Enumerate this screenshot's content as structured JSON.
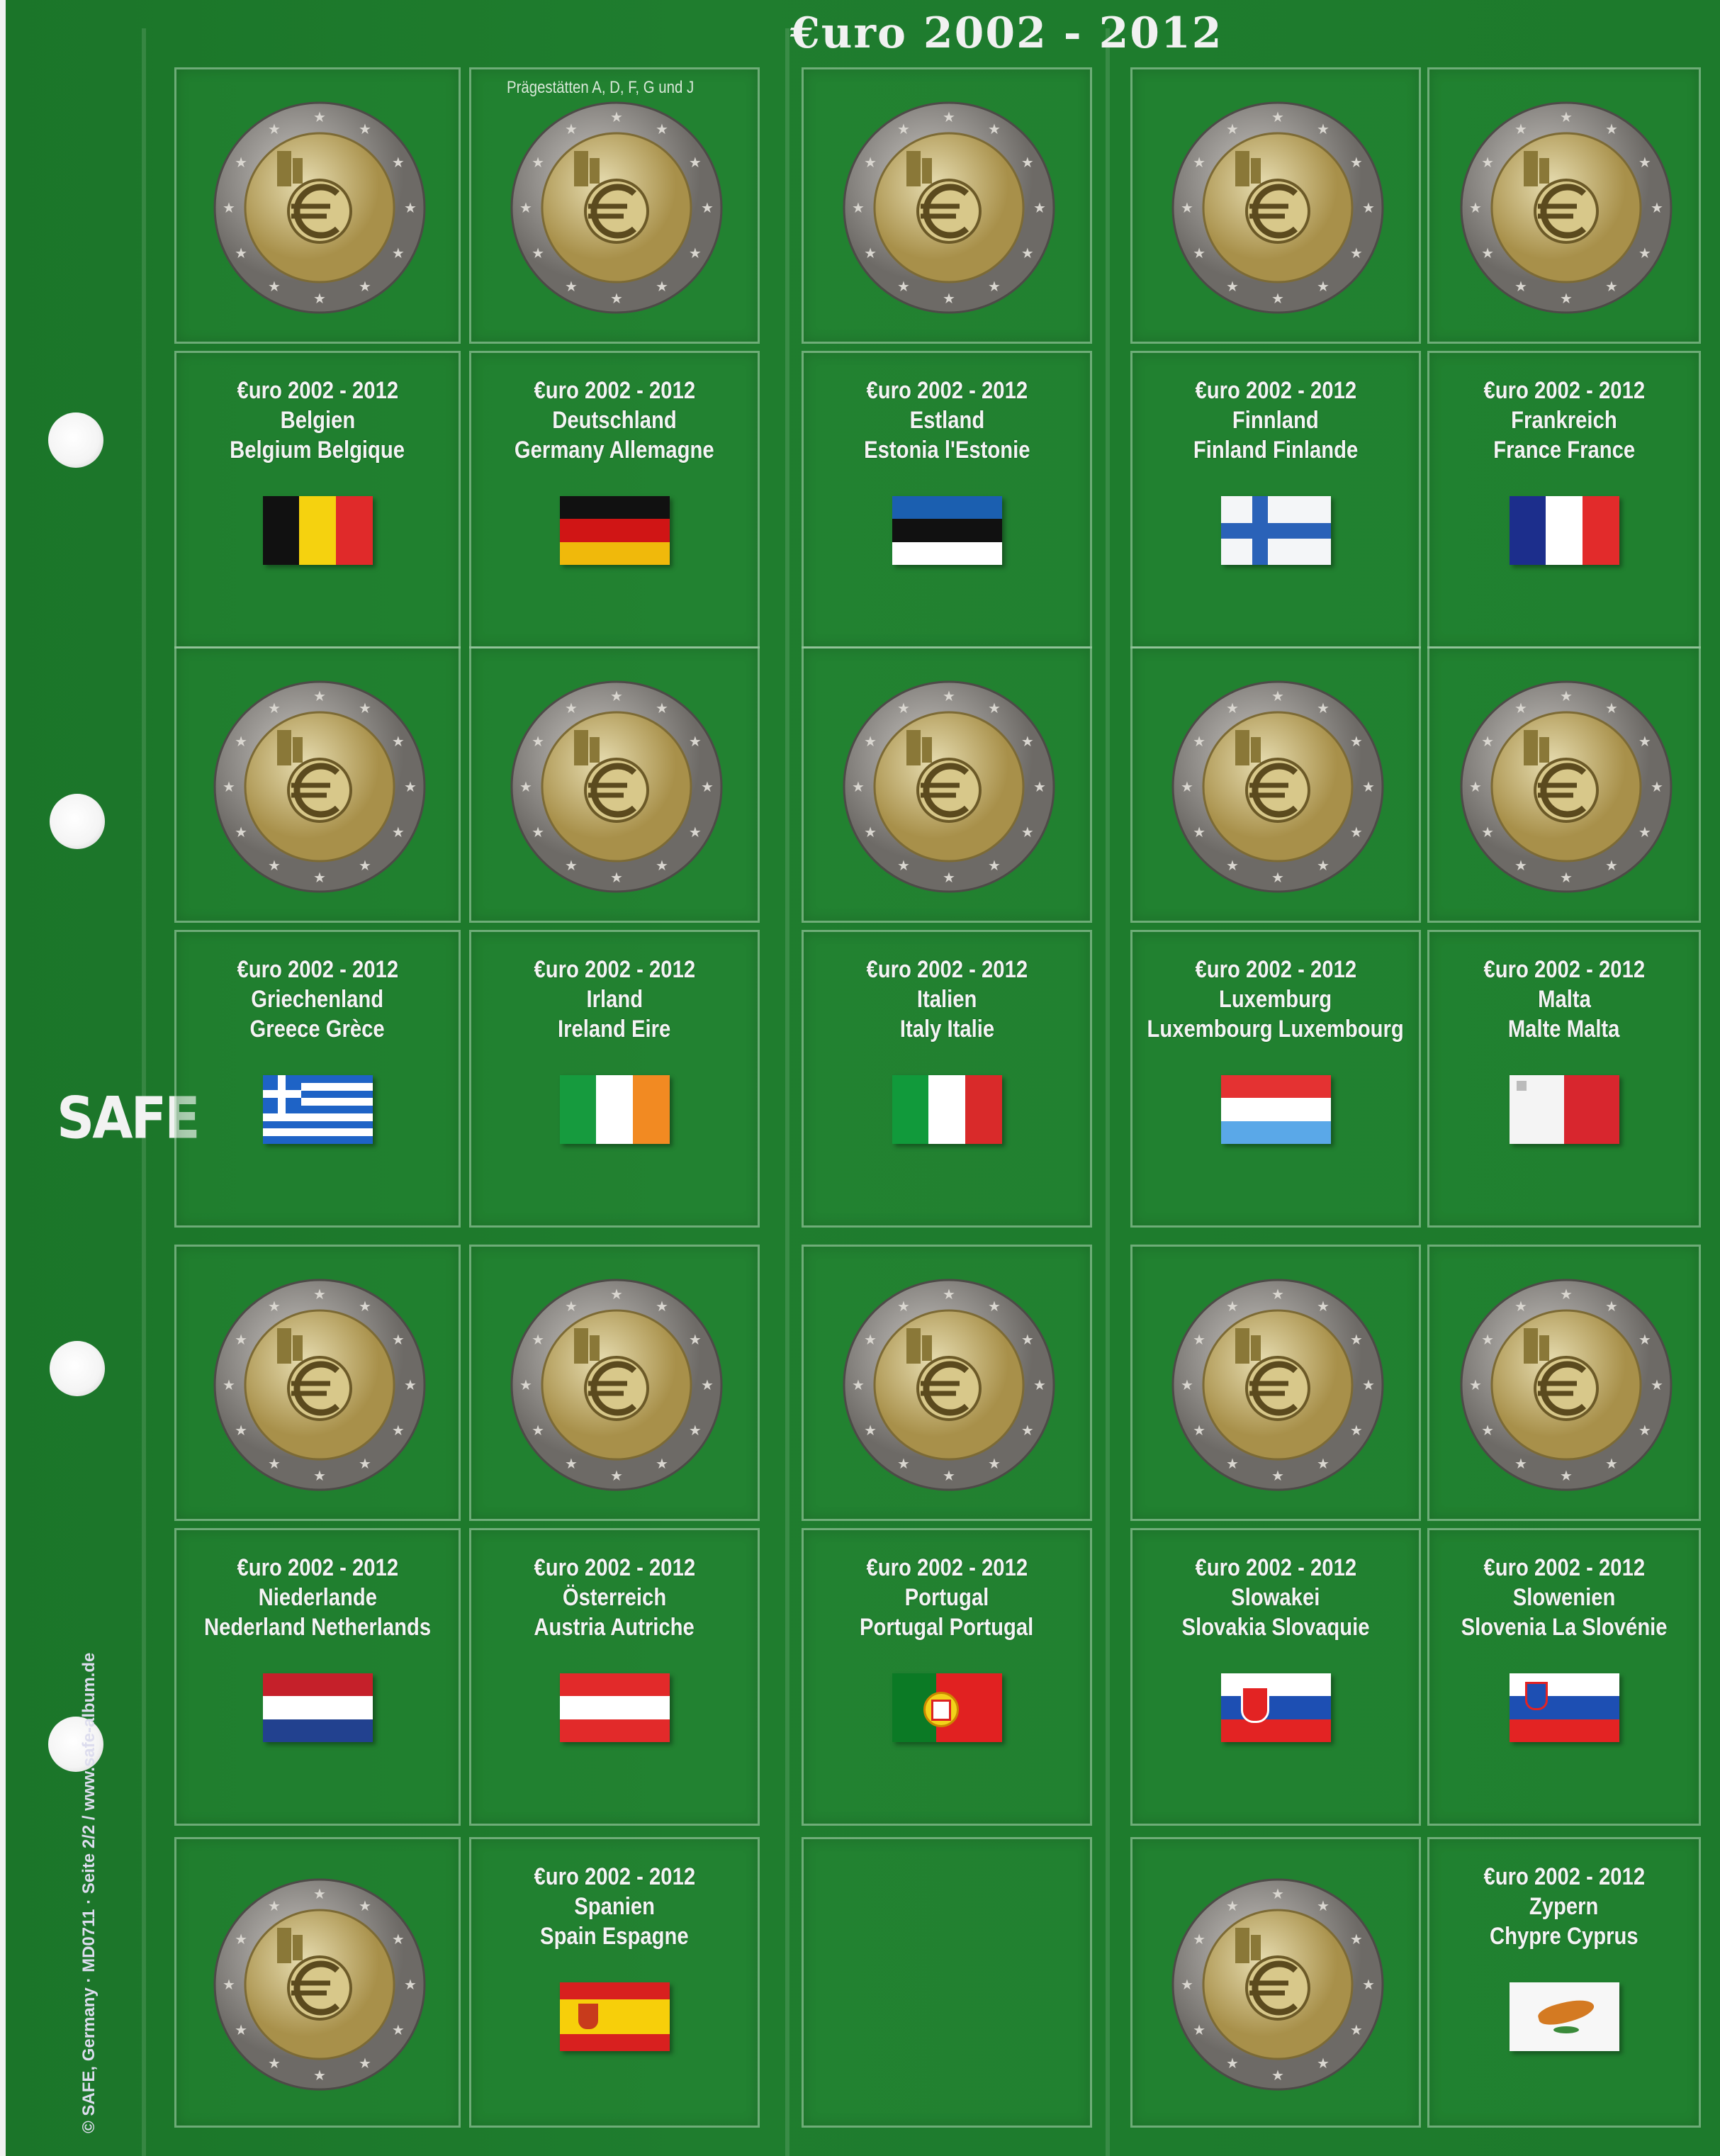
{
  "header": {
    "title": "€uro 2002 - 2012",
    "mint_note": "Prägestätten A, D, F, G und J"
  },
  "branding": {
    "logo": "SAFE",
    "footer": "© SAFE, Germany · MD0711 · Seite 2/2 / www.safe-album.de"
  },
  "colors": {
    "background": "#1d7a2c",
    "coin_ring": "#8d8a86",
    "coin_center": "#c9b46a"
  },
  "countries": [
    {
      "title": "€uro 2002 - 2012",
      "name_de": "Belgien",
      "name_intl": "Belgium  Belgique",
      "flag": "belgium"
    },
    {
      "title": "€uro 2002 - 2012",
      "name_de": "Deutschland",
      "name_intl": "Germany  Allemagne",
      "flag": "germany"
    },
    {
      "title": "€uro 2002 - 2012",
      "name_de": "Estland",
      "name_intl": "Estonia  l'Estonie",
      "flag": "estonia"
    },
    {
      "title": "€uro 2002 - 2012",
      "name_de": "Finnland",
      "name_intl": "Finland  Finlande",
      "flag": "finland"
    },
    {
      "title": "€uro 2002 - 2012",
      "name_de": "Frankreich",
      "name_intl": "France  France",
      "flag": "france"
    },
    {
      "title": "€uro 2002 - 2012",
      "name_de": "Griechenland",
      "name_intl": "Greece  Grèce",
      "flag": "greece"
    },
    {
      "title": "€uro 2002 - 2012",
      "name_de": "Irland",
      "name_intl": "Ireland   Eire",
      "flag": "ireland"
    },
    {
      "title": "€uro 2002 - 2012",
      "name_de": "Italien",
      "name_intl": "Italy  Italie",
      "flag": "italy"
    },
    {
      "title": "€uro 2002 - 2012",
      "name_de": "Luxemburg",
      "name_intl": "Luxembourg  Luxembourg",
      "flag": "luxembourg"
    },
    {
      "title": "€uro 2002 - 2012",
      "name_de": "Malta",
      "name_intl": "Malte  Malta",
      "flag": "malta"
    },
    {
      "title": "€uro 2002 - 2012",
      "name_de": "Niederlande",
      "name_intl": "Nederland  Netherlands",
      "flag": "netherlands"
    },
    {
      "title": "€uro 2002 - 2012",
      "name_de": "Österreich",
      "name_intl": "Austria  Autriche",
      "flag": "austria"
    },
    {
      "title": "€uro 2002 - 2012",
      "name_de": "Portugal",
      "name_intl": "Portugal  Portugal",
      "flag": "portugal"
    },
    {
      "title": "€uro 2002 - 2012",
      "name_de": "Slowakei",
      "name_intl": "Slovakia  Slovaquie",
      "flag": "slovakia"
    },
    {
      "title": "€uro 2002 - 2012",
      "name_de": "Slowenien",
      "name_intl": "Slovenia   La Slovénie",
      "flag": "slovenia"
    },
    {
      "title": "€uro 2002 - 2012",
      "name_de": "Spanien",
      "name_intl": "Spain  Espagne",
      "flag": "spain"
    },
    {
      "title": "€uro 2002 - 2012",
      "name_de": "Zypern",
      "name_intl": "Chypre  Cyprus",
      "flag": "cyprus"
    }
  ]
}
